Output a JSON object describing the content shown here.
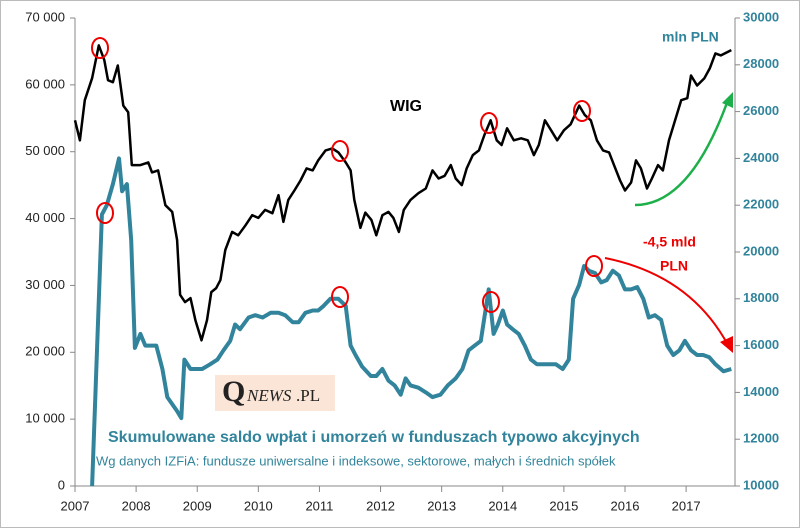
{
  "chart_data": {
    "type": "line",
    "xlim": [
      2007,
      2017.8
    ],
    "xticks": [
      2007,
      2008,
      2009,
      2010,
      2011,
      2012,
      2013,
      2014,
      2015,
      2016,
      2017
    ],
    "ylim": [
      0,
      70000
    ],
    "yticks": [
      0,
      {
        "value": 10000,
        "label": "10 000"
      },
      {
        "value": 20000,
        "label": "20 000"
      },
      {
        "value": 30000,
        "label": "30 000"
      },
      {
        "value": 40000,
        "label": "40 000"
      },
      {
        "value": 50000,
        "label": "50 000"
      },
      {
        "value": 60000,
        "label": "60 000"
      },
      {
        "value": 70000,
        "label": "70 000"
      }
    ],
    "y2lim": [
      10000,
      30000
    ],
    "y2ticks": [
      10000,
      12000,
      14000,
      16000,
      18000,
      20000,
      22000,
      24000,
      26000,
      28000,
      30000
    ],
    "grid": false,
    "annotations": {
      "wig": "WIG",
      "unit": "mln PLN",
      "outflow_1": "-4,5 mld",
      "outflow_2": "PLN",
      "caption": "Skumulowane saldo wpłat i umorzeń w funduszach  typowo akcyjnych",
      "source": "Wg danych IZFiA: fundusze uniwersalne i indeksowe, sektorowe, małych i średnich spółek",
      "logo_initial": "Q",
      "logo_rest": "NEWS",
      "logo_suffix": ".PL"
    },
    "series": [
      {
        "name": "WIG",
        "color": "#000000",
        "axis": "y",
        "x": [
          2007.0,
          2007.08,
          2007.16,
          2007.28,
          2007.39,
          2007.48,
          2007.54,
          2007.62,
          2007.7,
          2007.79,
          2007.87,
          2007.93,
          2008.07,
          2008.2,
          2008.26,
          2008.36,
          2008.48,
          2008.59,
          2008.67,
          2008.72,
          2008.8,
          2008.89,
          2008.97,
          2009.07,
          2009.16,
          2009.23,
          2009.31,
          2009.38,
          2009.46,
          2009.57,
          2009.67,
          2009.79,
          2009.9,
          2010.0,
          2010.11,
          2010.23,
          2010.33,
          2010.41,
          2010.49,
          2010.59,
          2010.69,
          2010.79,
          2010.89,
          2010.98,
          2011.1,
          2011.21,
          2011.31,
          2011.43,
          2011.51,
          2011.57,
          2011.67,
          2011.75,
          2011.85,
          2011.93,
          2012.03,
          2012.13,
          2012.21,
          2012.3,
          2012.38,
          2012.49,
          2012.62,
          2012.74,
          2012.85,
          2012.95,
          2013.05,
          2013.15,
          2013.23,
          2013.33,
          2013.41,
          2013.51,
          2013.61,
          2013.7,
          2013.8,
          2013.9,
          2013.98,
          2014.07,
          2014.18,
          2014.3,
          2014.41,
          2014.51,
          2014.59,
          2014.69,
          2014.79,
          2014.89,
          2015.0,
          2015.11,
          2015.25,
          2015.34,
          2015.44,
          2015.54,
          2015.64,
          2015.74,
          2015.82,
          2015.92,
          2016.0,
          2016.1,
          2016.18,
          2016.26,
          2016.36,
          2016.44,
          2016.54,
          2016.62,
          2016.72,
          2016.82,
          2016.92,
          2017.02,
          2017.08,
          2017.18,
          2017.3,
          2017.39,
          2017.48,
          2017.57,
          2017.74
        ],
        "values": [
          54700,
          51700,
          57700,
          61000,
          65900,
          63700,
          60700,
          60400,
          62900,
          56900,
          55900,
          48000,
          48000,
          48400,
          46900,
          47200,
          42000,
          41000,
          36800,
          28600,
          27500,
          28100,
          24800,
          21800,
          24800,
          29000,
          29600,
          30800,
          35300,
          38000,
          37500,
          39000,
          40500,
          40100,
          41300,
          40800,
          43500,
          39500,
          42800,
          44200,
          45700,
          47500,
          47200,
          48700,
          50200,
          50500,
          49900,
          48400,
          47200,
          42800,
          38600,
          40900,
          39800,
          37500,
          40500,
          41000,
          40100,
          38000,
          41300,
          42800,
          43800,
          44500,
          47200,
          46000,
          46400,
          48000,
          46000,
          45000,
          47500,
          49500,
          50200,
          52500,
          54700,
          51700,
          51000,
          53500,
          51700,
          52000,
          51700,
          49500,
          51000,
          54700,
          53200,
          51700,
          53200,
          54100,
          56900,
          55500,
          54700,
          51700,
          50200,
          49900,
          48000,
          45700,
          44200,
          45400,
          48700,
          47500,
          44500,
          46000,
          48000,
          47200,
          51700,
          54700,
          57700,
          58000,
          61400,
          59900,
          61000,
          62500,
          64700,
          64400,
          65200
        ]
      },
      {
        "name": "Skumulowane saldo",
        "color": "#31849b",
        "axis": "y2",
        "x": [
          2007.28,
          2007.36,
          2007.44,
          2007.52,
          2007.62,
          2007.72,
          2007.77,
          2007.85,
          2007.92,
          2007.98,
          2008.07,
          2008.15,
          2008.23,
          2008.33,
          2008.43,
          2008.51,
          2008.59,
          2008.67,
          2008.74,
          2008.79,
          2008.89,
          2008.97,
          2009.08,
          2009.21,
          2009.33,
          2009.43,
          2009.54,
          2009.62,
          2009.7,
          2009.84,
          2009.95,
          2010.07,
          2010.2,
          2010.33,
          2010.44,
          2010.56,
          2010.66,
          2010.77,
          2010.89,
          2010.98,
          2011.07,
          2011.18,
          2011.31,
          2011.43,
          2011.51,
          2011.59,
          2011.7,
          2011.84,
          2011.93,
          2012.03,
          2012.13,
          2012.23,
          2012.33,
          2012.41,
          2012.49,
          2012.62,
          2012.74,
          2012.85,
          2012.98,
          2013.1,
          2013.23,
          2013.34,
          2013.44,
          2013.54,
          2013.64,
          2013.77,
          2013.85,
          2013.92,
          2014.0,
          2014.07,
          2014.16,
          2014.26,
          2014.36,
          2014.46,
          2014.56,
          2014.66,
          2014.75,
          2014.87,
          2014.98,
          2015.08,
          2015.15,
          2015.25,
          2015.33,
          2015.41,
          2015.51,
          2015.61,
          2015.7,
          2015.8,
          2015.9,
          2016.0,
          2016.1,
          2016.2,
          2016.3,
          2016.39,
          2016.49,
          2016.59,
          2016.69,
          2016.79,
          2016.89,
          2016.98,
          2017.08,
          2017.18,
          2017.28,
          2017.38,
          2017.48,
          2017.61,
          2017.74
        ],
        "values": [
          10000,
          15800,
          21600,
          22000,
          22900,
          24000,
          22600,
          22900,
          20500,
          15900,
          16500,
          16000,
          16000,
          16000,
          15000,
          13800,
          13500,
          13200,
          12900,
          15400,
          15000,
          15000,
          15000,
          15200,
          15400,
          15800,
          16200,
          16900,
          16700,
          17200,
          17300,
          17200,
          17400,
          17400,
          17300,
          17000,
          17000,
          17400,
          17500,
          17500,
          17700,
          18000,
          18000,
          17700,
          16000,
          15600,
          15100,
          14700,
          14700,
          15000,
          14500,
          14300,
          13900,
          14600,
          14300,
          14200,
          14000,
          13800,
          13900,
          14300,
          14600,
          15000,
          15800,
          16000,
          16200,
          18400,
          16500,
          16900,
          17500,
          16900,
          16700,
          16500,
          16000,
          15400,
          15200,
          15200,
          15200,
          15200,
          15000,
          15400,
          18000,
          18600,
          19400,
          19200,
          19100,
          18700,
          18800,
          19200,
          19000,
          18400,
          18400,
          18500,
          18000,
          17200,
          17300,
          17100,
          16000,
          15600,
          15800,
          16200,
          15800,
          15600,
          15600,
          15500,
          15200,
          14900,
          15000
        ]
      }
    ]
  }
}
